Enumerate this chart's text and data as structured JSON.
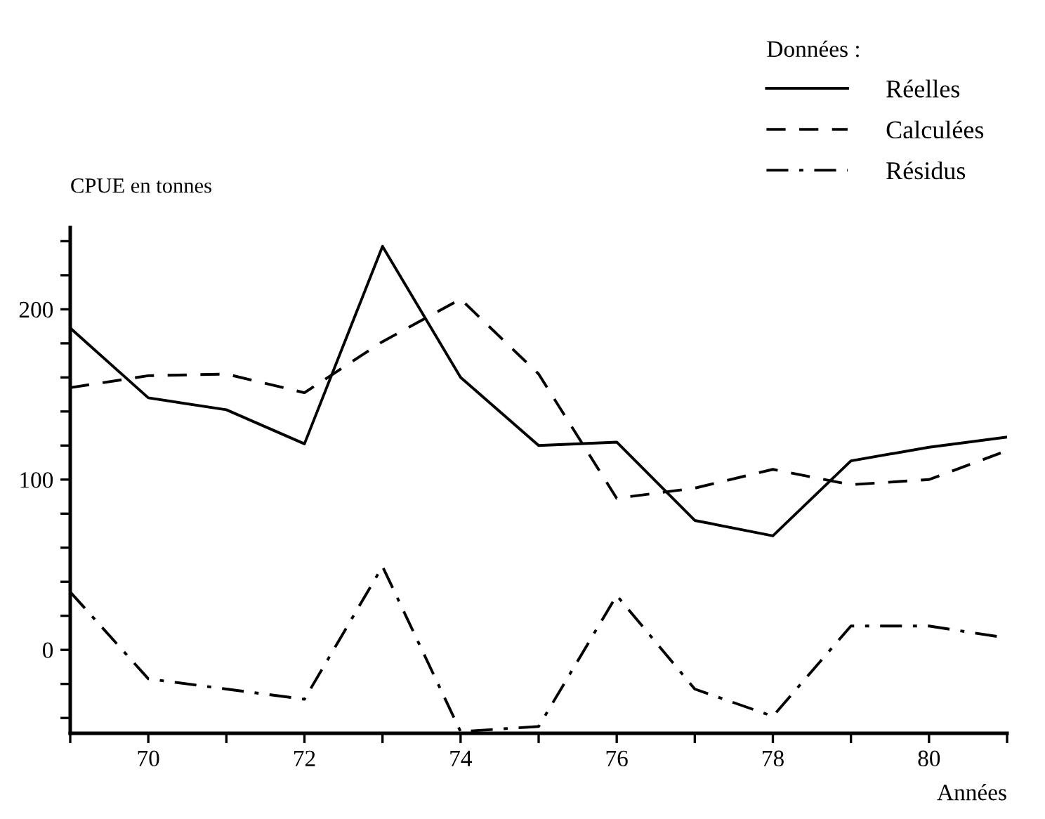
{
  "chart_data": {
    "type": "line",
    "ylabel": "CPUE en tonnes",
    "xlabel": "Années",
    "legend_title": "Données :",
    "legend": "top right",
    "grid": false,
    "x": [
      69,
      70,
      71,
      72,
      73,
      74,
      75,
      76,
      77,
      78,
      79,
      80,
      81
    ],
    "xlim": [
      69,
      81
    ],
    "xticks": [
      {
        "value": 69,
        "label": null
      },
      70,
      {
        "value": 71,
        "label": null
      },
      72,
      {
        "value": 73,
        "label": null
      },
      74,
      {
        "value": 75,
        "label": null
      },
      76,
      {
        "value": 77,
        "label": null
      },
      78,
      {
        "value": 79,
        "label": null
      },
      80,
      {
        "value": 81,
        "label": null
      }
    ],
    "ylim": [
      -49,
      248
    ],
    "yticks": [
      {
        "value": -40,
        "label": null
      },
      {
        "value": -20,
        "label": null
      },
      0,
      {
        "value": 20,
        "label": null
      },
      {
        "value": 40,
        "label": null
      },
      {
        "value": 60,
        "label": null
      },
      {
        "value": 80,
        "label": null
      },
      100,
      {
        "value": 120,
        "label": null
      },
      {
        "value": 140,
        "label": null
      },
      {
        "value": 160,
        "label": null
      },
      {
        "value": 180,
        "label": null
      },
      200,
      {
        "value": 220,
        "label": null
      },
      {
        "value": 240,
        "label": null
      }
    ],
    "series": [
      {
        "name": "Réelles",
        "color": "#000000",
        "line_style": "solid",
        "values": [
          189,
          148,
          141,
          121,
          237,
          160,
          120,
          122,
          76,
          67,
          111,
          119,
          125
        ]
      },
      {
        "name": "Calculées",
        "color": "#000000",
        "line_style": "dashed",
        "values": [
          154,
          161,
          162,
          151,
          181,
          206,
          162,
          89,
          95,
          106,
          97,
          100,
          117
        ]
      },
      {
        "name": "Résidus",
        "color": "#000000",
        "line_style": "dashdot",
        "values": [
          34,
          -17,
          -23,
          -29,
          49,
          -48,
          -45,
          32,
          -23,
          -39,
          14,
          14,
          7
        ]
      }
    ]
  }
}
